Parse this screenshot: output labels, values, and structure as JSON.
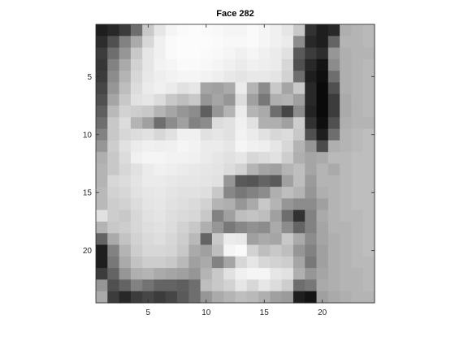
{
  "chart_data": {
    "type": "heatmap",
    "title": "Face 282",
    "colormap": "gray",
    "xlabel": "",
    "ylabel": "",
    "xlim": [
      0.5,
      24.5
    ],
    "ylim": [
      0.5,
      24.5
    ],
    "y_direction": "reverse",
    "x_ticks": [
      5,
      10,
      15,
      20
    ],
    "y_ticks": [
      5,
      10,
      15,
      20
    ],
    "grid": false,
    "value_range": [
      0,
      255
    ],
    "rows": 24,
    "cols": 24,
    "values": [
      [
        30,
        40,
        60,
        110,
        200,
        230,
        245,
        250,
        252,
        250,
        248,
        245,
        245,
        250,
        245,
        240,
        230,
        200,
        50,
        30,
        40,
        175,
        180,
        185
      ],
      [
        45,
        80,
        130,
        170,
        215,
        240,
        250,
        252,
        252,
        252,
        250,
        248,
        248,
        250,
        245,
        240,
        235,
        140,
        40,
        30,
        100,
        180,
        180,
        185
      ],
      [
        60,
        110,
        150,
        200,
        230,
        240,
        250,
        252,
        252,
        250,
        248,
        245,
        240,
        245,
        240,
        235,
        225,
        90,
        60,
        45,
        150,
        175,
        180,
        180
      ],
      [
        55,
        130,
        170,
        210,
        230,
        242,
        245,
        250,
        250,
        248,
        245,
        240,
        235,
        240,
        238,
        235,
        215,
        80,
        40,
        20,
        140,
        175,
        180,
        185
      ],
      [
        60,
        140,
        180,
        215,
        232,
        238,
        242,
        245,
        245,
        242,
        238,
        232,
        228,
        232,
        232,
        228,
        210,
        110,
        30,
        15,
        110,
        175,
        180,
        185
      ],
      [
        70,
        150,
        190,
        220,
        235,
        240,
        235,
        225,
        230,
        165,
        160,
        170,
        235,
        180,
        140,
        200,
        165,
        200,
        40,
        10,
        80,
        175,
        180,
        185
      ],
      [
        80,
        165,
        200,
        225,
        230,
        220,
        200,
        190,
        200,
        150,
        165,
        150,
        220,
        160,
        120,
        175,
        180,
        160,
        40,
        10,
        60,
        170,
        180,
        185
      ],
      [
        95,
        185,
        210,
        205,
        200,
        180,
        165,
        150,
        140,
        95,
        150,
        180,
        235,
        180,
        170,
        110,
        70,
        140,
        35,
        10,
        60,
        170,
        180,
        185
      ],
      [
        110,
        200,
        220,
        180,
        160,
        110,
        140,
        160,
        130,
        140,
        220,
        225,
        240,
        225,
        175,
        175,
        160,
        205,
        50,
        15,
        80,
        175,
        180,
        180
      ],
      [
        130,
        200,
        215,
        220,
        225,
        215,
        225,
        240,
        240,
        225,
        230,
        225,
        242,
        235,
        225,
        215,
        220,
        200,
        80,
        30,
        110,
        180,
        185,
        190
      ],
      [
        150,
        205,
        225,
        235,
        240,
        238,
        240,
        245,
        242,
        235,
        235,
        230,
        245,
        240,
        238,
        230,
        215,
        180,
        150,
        75,
        175,
        180,
        185,
        190
      ],
      [
        175,
        200,
        220,
        240,
        245,
        245,
        242,
        242,
        240,
        235,
        230,
        225,
        230,
        215,
        220,
        225,
        205,
        175,
        165,
        170,
        185,
        185,
        190,
        190
      ],
      [
        180,
        200,
        215,
        225,
        235,
        240,
        238,
        235,
        232,
        230,
        228,
        220,
        210,
        180,
        165,
        160,
        180,
        190,
        165,
        180,
        170,
        185,
        190,
        190
      ],
      [
        180,
        215,
        220,
        228,
        235,
        235,
        232,
        230,
        230,
        228,
        225,
        150,
        90,
        85,
        100,
        90,
        160,
        190,
        155,
        180,
        180,
        185,
        190,
        190
      ],
      [
        185,
        210,
        215,
        225,
        230,
        232,
        228,
        225,
        225,
        222,
        200,
        135,
        120,
        130,
        140,
        175,
        190,
        180,
        150,
        175,
        180,
        185,
        190,
        190
      ],
      [
        185,
        205,
        210,
        220,
        228,
        230,
        225,
        222,
        218,
        210,
        180,
        175,
        150,
        170,
        200,
        180,
        150,
        140,
        140,
        160,
        180,
        185,
        190,
        190
      ],
      [
        225,
        205,
        200,
        215,
        225,
        228,
        222,
        218,
        215,
        200,
        130,
        160,
        190,
        195,
        190,
        160,
        110,
        50,
        130,
        170,
        180,
        185,
        185,
        190
      ],
      [
        180,
        200,
        205,
        215,
        222,
        225,
        220,
        210,
        200,
        175,
        150,
        120,
        135,
        145,
        140,
        170,
        140,
        100,
        130,
        165,
        180,
        180,
        185,
        190
      ],
      [
        100,
        170,
        195,
        210,
        218,
        222,
        215,
        205,
        185,
        100,
        200,
        235,
        232,
        160,
        170,
        165,
        200,
        170,
        140,
        165,
        175,
        180,
        185,
        190
      ],
      [
        30,
        130,
        180,
        205,
        215,
        215,
        212,
        200,
        170,
        160,
        190,
        245,
        250,
        210,
        190,
        200,
        190,
        150,
        130,
        160,
        175,
        180,
        185,
        190
      ],
      [
        30,
        120,
        170,
        195,
        205,
        205,
        200,
        185,
        160,
        170,
        130,
        165,
        215,
        230,
        215,
        210,
        205,
        165,
        120,
        160,
        175,
        180,
        185,
        185
      ],
      [
        60,
        100,
        150,
        175,
        180,
        170,
        165,
        160,
        150,
        180,
        200,
        225,
        240,
        245,
        245,
        230,
        225,
        175,
        150,
        165,
        175,
        180,
        180,
        185
      ],
      [
        150,
        80,
        100,
        130,
        115,
        100,
        100,
        95,
        110,
        190,
        200,
        210,
        230,
        215,
        230,
        220,
        205,
        110,
        120,
        170,
        175,
        180,
        180,
        185
      ],
      [
        170,
        60,
        40,
        60,
        70,
        60,
        70,
        90,
        110,
        150,
        170,
        180,
        190,
        185,
        175,
        160,
        155,
        30,
        20,
        160,
        170,
        175,
        180,
        180
      ]
    ]
  }
}
